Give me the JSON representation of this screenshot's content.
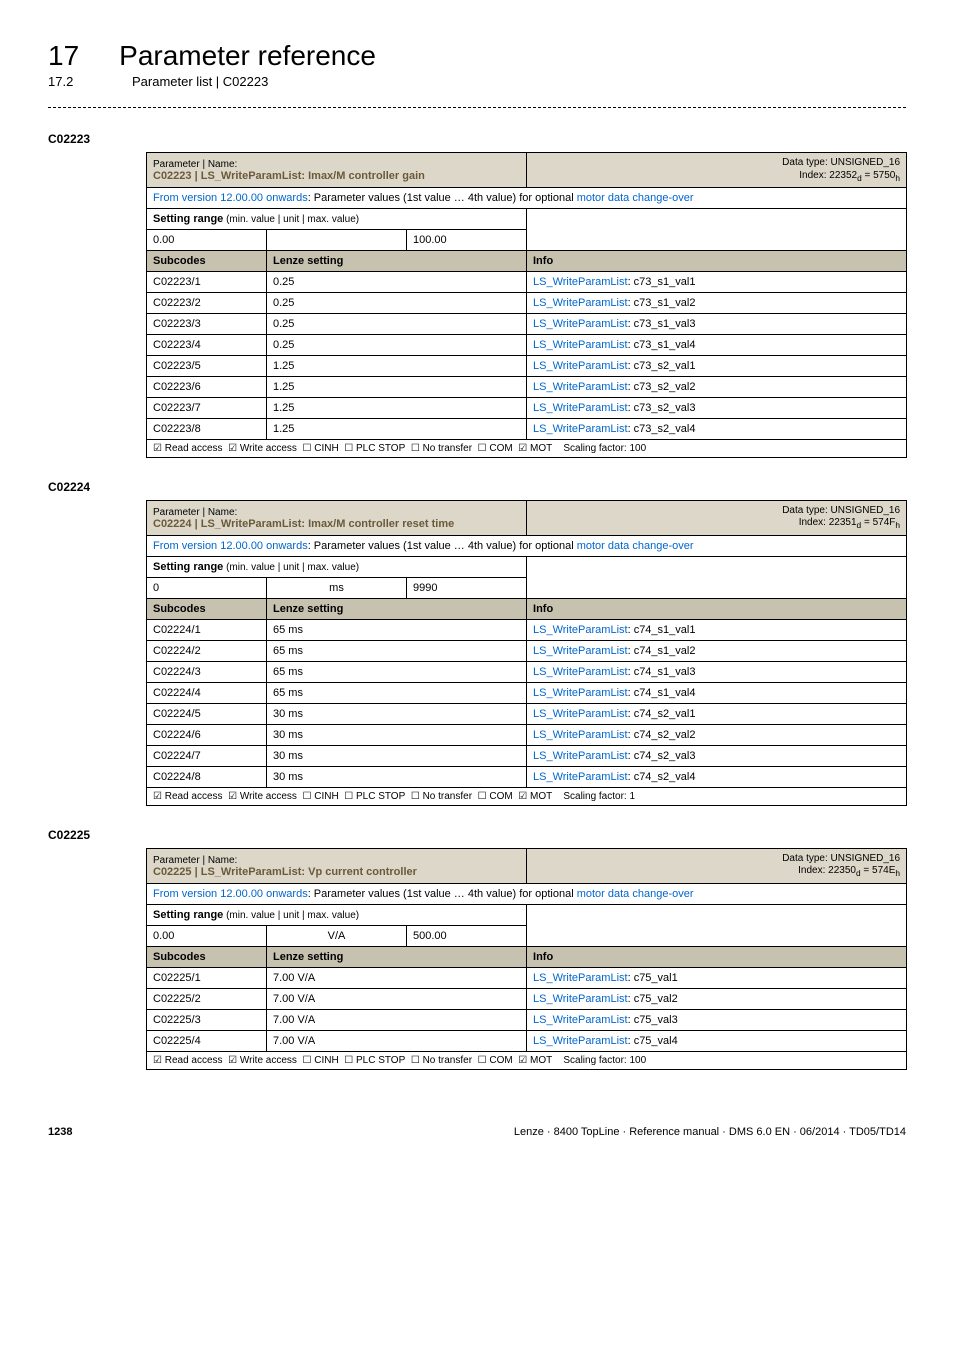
{
  "chapter": {
    "num": "17",
    "title": "Parameter reference"
  },
  "section": {
    "num": "17.2",
    "title": "Parameter list | C02223"
  },
  "tables": [
    {
      "code": "C02223",
      "header_title": "C02223 | LS_WriteParamList: Imax/M controller gain",
      "meta_type": "Data type: UNSIGNED_16",
      "meta_index": "Index: 22352",
      "meta_index_sub": "d",
      "meta_index_eq": " = 5750",
      "meta_index_sub2": "h",
      "desc_pre": "From version 12.00.00 onwards",
      "desc_mid": ": Parameter values (1st value … 4th value) for optional ",
      "desc_link": "motor data change-over",
      "range_label": "Setting range",
      "range_small": " (min. value | unit | max. value)",
      "range_min": "0.00",
      "range_unit": "",
      "range_max": "100.00",
      "sub_label": "Subcodes",
      "lenze_label": "Lenze setting",
      "info_label": "Info",
      "rows": [
        {
          "sub": "C02223/1",
          "val": "0.25",
          "link": "LS_WriteParamList",
          "suffix": ": c73_s1_val1"
        },
        {
          "sub": "C02223/2",
          "val": "0.25",
          "link": "LS_WriteParamList",
          "suffix": ": c73_s1_val2"
        },
        {
          "sub": "C02223/3",
          "val": "0.25",
          "link": "LS_WriteParamList",
          "suffix": ": c73_s1_val3"
        },
        {
          "sub": "C02223/4",
          "val": "0.25",
          "link": "LS_WriteParamList",
          "suffix": ": c73_s1_val4"
        },
        {
          "sub": "C02223/5",
          "val": "1.25",
          "link": "LS_WriteParamList",
          "suffix": ": c73_s2_val1"
        },
        {
          "sub": "C02223/6",
          "val": "1.25",
          "link": "LS_WriteParamList",
          "suffix": ": c73_s2_val2"
        },
        {
          "sub": "C02223/7",
          "val": "1.25",
          "link": "LS_WriteParamList",
          "suffix": ": c73_s2_val3"
        },
        {
          "sub": "C02223/8",
          "val": "1.25",
          "link": "LS_WriteParamList",
          "suffix": ": c73_s2_val4"
        }
      ],
      "footer_scaling": "Scaling factor: 100"
    },
    {
      "code": "C02224",
      "header_title": "C02224 | LS_WriteParamList: Imax/M controller reset time",
      "meta_type": "Data type: UNSIGNED_16",
      "meta_index": "Index: 22351",
      "meta_index_sub": "d",
      "meta_index_eq": " = 574F",
      "meta_index_sub2": "h",
      "desc_pre": "From version 12.00.00 onwards",
      "desc_mid": ": Parameter values (1st value … 4th value) for optional ",
      "desc_link": "motor data change-over",
      "range_label": "Setting range",
      "range_small": " (min. value | unit | max. value)",
      "range_min": "0",
      "range_unit": "ms",
      "range_max": "9990",
      "sub_label": "Subcodes",
      "lenze_label": "Lenze setting",
      "info_label": "Info",
      "rows": [
        {
          "sub": "C02224/1",
          "val": "65 ms",
          "link": "LS_WriteParamList",
          "suffix": ": c74_s1_val1"
        },
        {
          "sub": "C02224/2",
          "val": "65 ms",
          "link": "LS_WriteParamList",
          "suffix": ": c74_s1_val2"
        },
        {
          "sub": "C02224/3",
          "val": "65 ms",
          "link": "LS_WriteParamList",
          "suffix": ": c74_s1_val3"
        },
        {
          "sub": "C02224/4",
          "val": "65 ms",
          "link": "LS_WriteParamList",
          "suffix": ": c74_s1_val4"
        },
        {
          "sub": "C02224/5",
          "val": "30 ms",
          "link": "LS_WriteParamList",
          "suffix": ": c74_s2_val1"
        },
        {
          "sub": "C02224/6",
          "val": "30 ms",
          "link": "LS_WriteParamList",
          "suffix": ": c74_s2_val2"
        },
        {
          "sub": "C02224/7",
          "val": "30 ms",
          "link": "LS_WriteParamList",
          "suffix": ": c74_s2_val3"
        },
        {
          "sub": "C02224/8",
          "val": "30 ms",
          "link": "LS_WriteParamList",
          "suffix": ": c74_s2_val4"
        }
      ],
      "footer_scaling": "Scaling factor: 1"
    },
    {
      "code": "C02225",
      "header_title": "C02225 | LS_WriteParamList: Vp current controller",
      "meta_type": "Data type: UNSIGNED_16",
      "meta_index": "Index: 22350",
      "meta_index_sub": "d",
      "meta_index_eq": " = 574E",
      "meta_index_sub2": "h",
      "desc_pre": "From version 12.00.00 onwards",
      "desc_mid": ": Parameter values (1st value … 4th value) for optional ",
      "desc_link": "motor data change-over",
      "range_label": "Setting range",
      "range_small": " (min. value | unit | max. value)",
      "range_min": "0.00",
      "range_unit": "V/A",
      "range_max": "500.00",
      "sub_label": "Subcodes",
      "lenze_label": "Lenze setting",
      "info_label": "Info",
      "rows": [
        {
          "sub": "C02225/1",
          "val": "7.00 V/A",
          "link": "LS_WriteParamList",
          "suffix": ": c75_val1"
        },
        {
          "sub": "C02225/2",
          "val": "7.00 V/A",
          "link": "LS_WriteParamList",
          "suffix": ": c75_val2"
        },
        {
          "sub": "C02225/3",
          "val": "7.00 V/A",
          "link": "LS_WriteParamList",
          "suffix": ": c75_val3"
        },
        {
          "sub": "C02225/4",
          "val": "7.00 V/A",
          "link": "LS_WriteParamList",
          "suffix": ": c75_val4"
        }
      ],
      "footer_scaling": "Scaling factor: 100"
    }
  ],
  "access_flags": {
    "read": "☑ Read access",
    "write": "☑ Write access",
    "cinh": "☐ CINH",
    "plc": "☐ PLC STOP",
    "notransfer": "☐ No transfer",
    "com": "☐ COM",
    "mot": "☑ MOT"
  },
  "footer": {
    "page": "1238",
    "right": "Lenze · 8400 TopLine · Reference manual · DMS 6.0 EN · 06/2014 · TD05/TD14"
  }
}
